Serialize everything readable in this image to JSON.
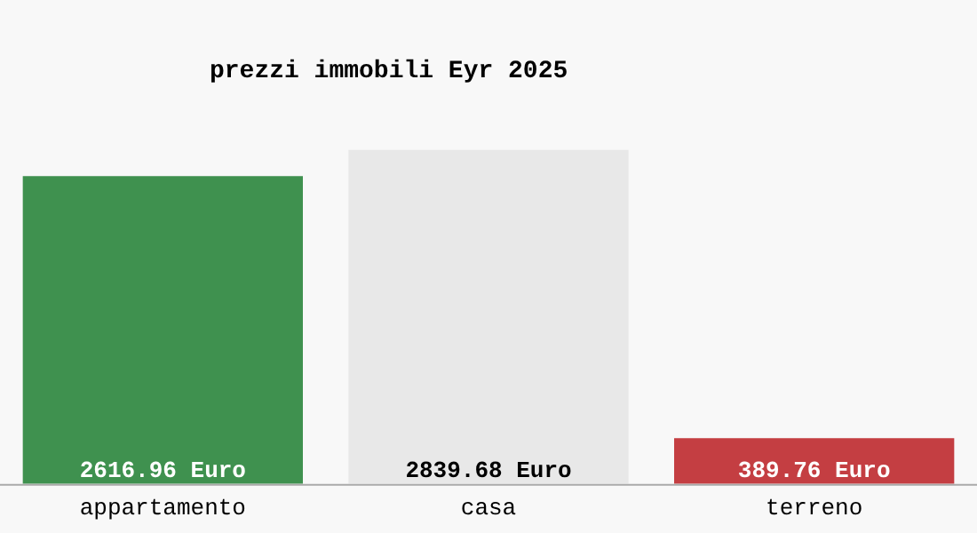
{
  "chart_data": {
    "type": "bar",
    "title": "prezzi immobili Eyr 2025",
    "categories": [
      "appartamento",
      "casa",
      "terreno"
    ],
    "values": [
      2616.96,
      2839.68,
      389.76
    ],
    "colors": [
      "#3f914f",
      "#e8e8e8",
      "#c43e42"
    ],
    "value_labels": [
      "2616.96 Euro",
      "2839.68 Euro",
      "389.76 Euro"
    ],
    "grid": false,
    "legend": false
  }
}
